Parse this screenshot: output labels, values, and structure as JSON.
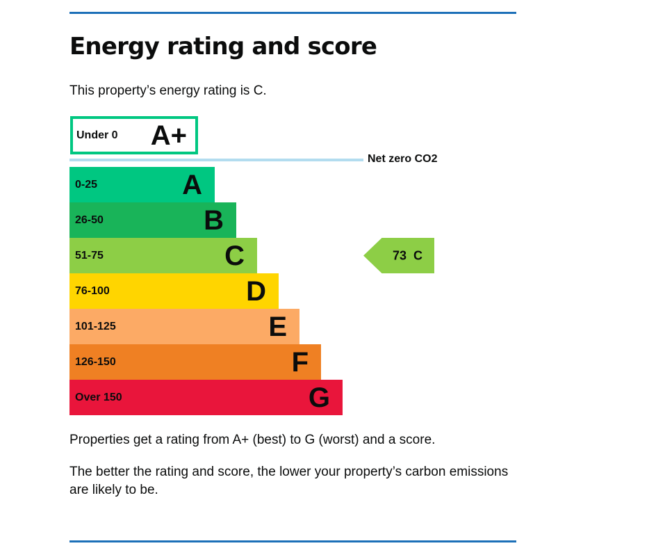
{
  "heading": "Energy rating and score",
  "intro": "This property’s energy rating is C.",
  "aplus": {
    "range": "Under 0",
    "letter": "A+",
    "color": "#00c781"
  },
  "net_zero_label": "Net zero CO2",
  "bands": [
    {
      "range": "0-25",
      "letter": "A",
      "color": "#00c781"
    },
    {
      "range": "26-50",
      "letter": "B",
      "color": "#19b459"
    },
    {
      "range": "51-75",
      "letter": "C",
      "color": "#8dce46"
    },
    {
      "range": "76-100",
      "letter": "D",
      "color": "#ffd500"
    },
    {
      "range": "101-125",
      "letter": "E",
      "color": "#fcaa65"
    },
    {
      "range": "126-150",
      "letter": "F",
      "color": "#ef8023"
    },
    {
      "range": "Over 150",
      "letter": "G",
      "color": "#e9153b"
    }
  ],
  "current": {
    "score": "73",
    "letter": "C",
    "color": "#8dce46",
    "label": "73  C"
  },
  "notes": [
    "Properties get a rating from A+ (best) to G (worst) and a score.",
    "The better the rating and score, the lower your property’s carbon emissions are likely to be."
  ]
}
